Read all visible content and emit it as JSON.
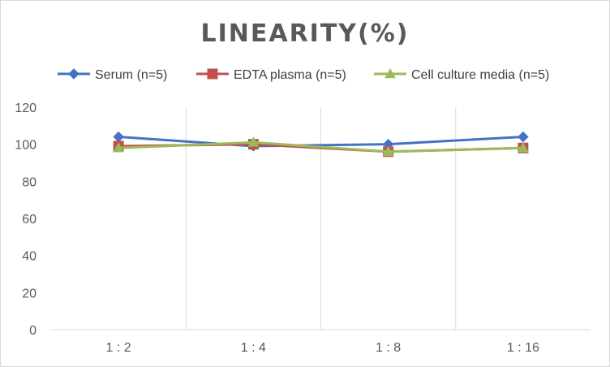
{
  "chart_data": {
    "type": "line",
    "title": "LINEARITY(%)",
    "categories": [
      "1:2",
      "1:4",
      "1:8",
      "1:16"
    ],
    "ylim": [
      0,
      120
    ],
    "yticks": [
      0,
      20,
      40,
      60,
      80,
      100,
      120
    ],
    "grid": "vertical-lines-between-categories",
    "legend_position": "top",
    "series": [
      {
        "name": "Serum (n=5)",
        "values": [
          104,
          99,
          100,
          104
        ],
        "color": "#4472C4",
        "marker": "diamond"
      },
      {
        "name": "EDTA plasma (n=5)",
        "values": [
          99,
          100,
          96,
          98
        ],
        "color": "#C0504D",
        "marker": "square"
      },
      {
        "name": "Cell culture media (n=5)",
        "values": [
          98,
          101,
          96,
          98
        ],
        "color": "#9BBB59",
        "marker": "triangle"
      }
    ]
  }
}
